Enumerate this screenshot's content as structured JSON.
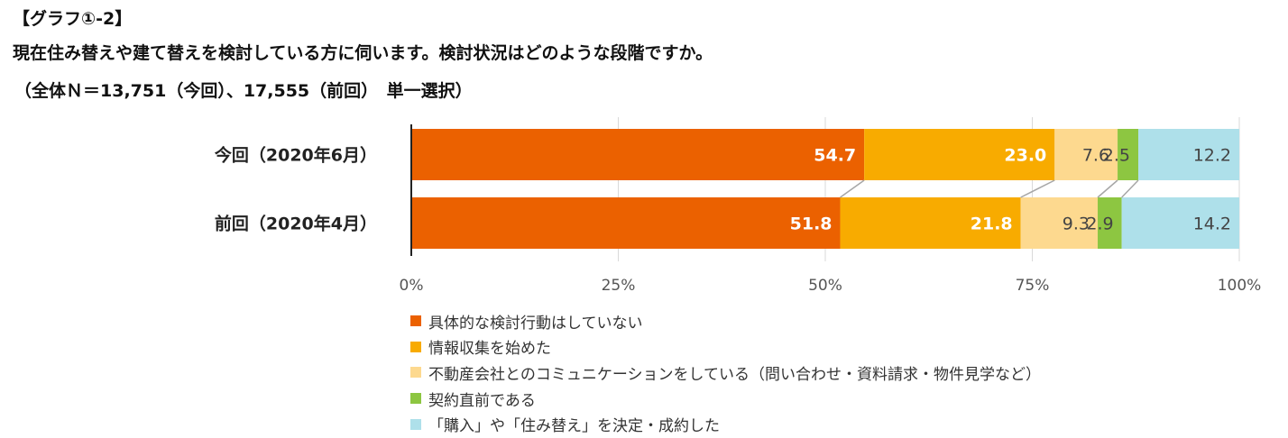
{
  "header": {
    "label": "【グラフ①-2】",
    "question": "現在住み替えや建て替えを検討している方に伺います。検討状況はどのような段階ですか。",
    "note": "（全体Ｎ＝13,751（今回）、17,555（前回）　単一選択）"
  },
  "chart_data": {
    "type": "bar",
    "orientation": "horizontal",
    "stacked": true,
    "categories": [
      "今回（2020年6月）",
      "前回（2020年4月）"
    ],
    "series": [
      {
        "name": "具体的な検討行動はしていない",
        "color": "#EB6100",
        "values": [
          54.7,
          51.8
        ]
      },
      {
        "name": "情報収集を始めた",
        "color": "#F8AB00",
        "values": [
          23.0,
          21.8
        ]
      },
      {
        "name": "不動産会社とのコミュニケーションをしている（問い合わせ・資料請求・物件見学など）",
        "color": "#FDD98F",
        "values": [
          7.6,
          9.3
        ]
      },
      {
        "name": "契約直前である",
        "color": "#8DC641",
        "values": [
          2.5,
          2.9
        ]
      },
      {
        "name": "「購入」や「住み替え」を決定・成約した",
        "color": "#AEE0EA",
        "values": [
          12.2,
          14.2
        ]
      }
    ],
    "data_labels": [
      [
        "54.7",
        "23.0",
        "7.6",
        "2.5",
        "12.2"
      ],
      [
        "51.8",
        "21.8",
        "9.3",
        "2.9",
        "14.2"
      ]
    ],
    "xlim": [
      0,
      100
    ],
    "x_ticks": [
      "0%",
      "25%",
      "50%",
      "75%",
      "100%"
    ],
    "grid": true,
    "legend_position": "bottom-left"
  }
}
